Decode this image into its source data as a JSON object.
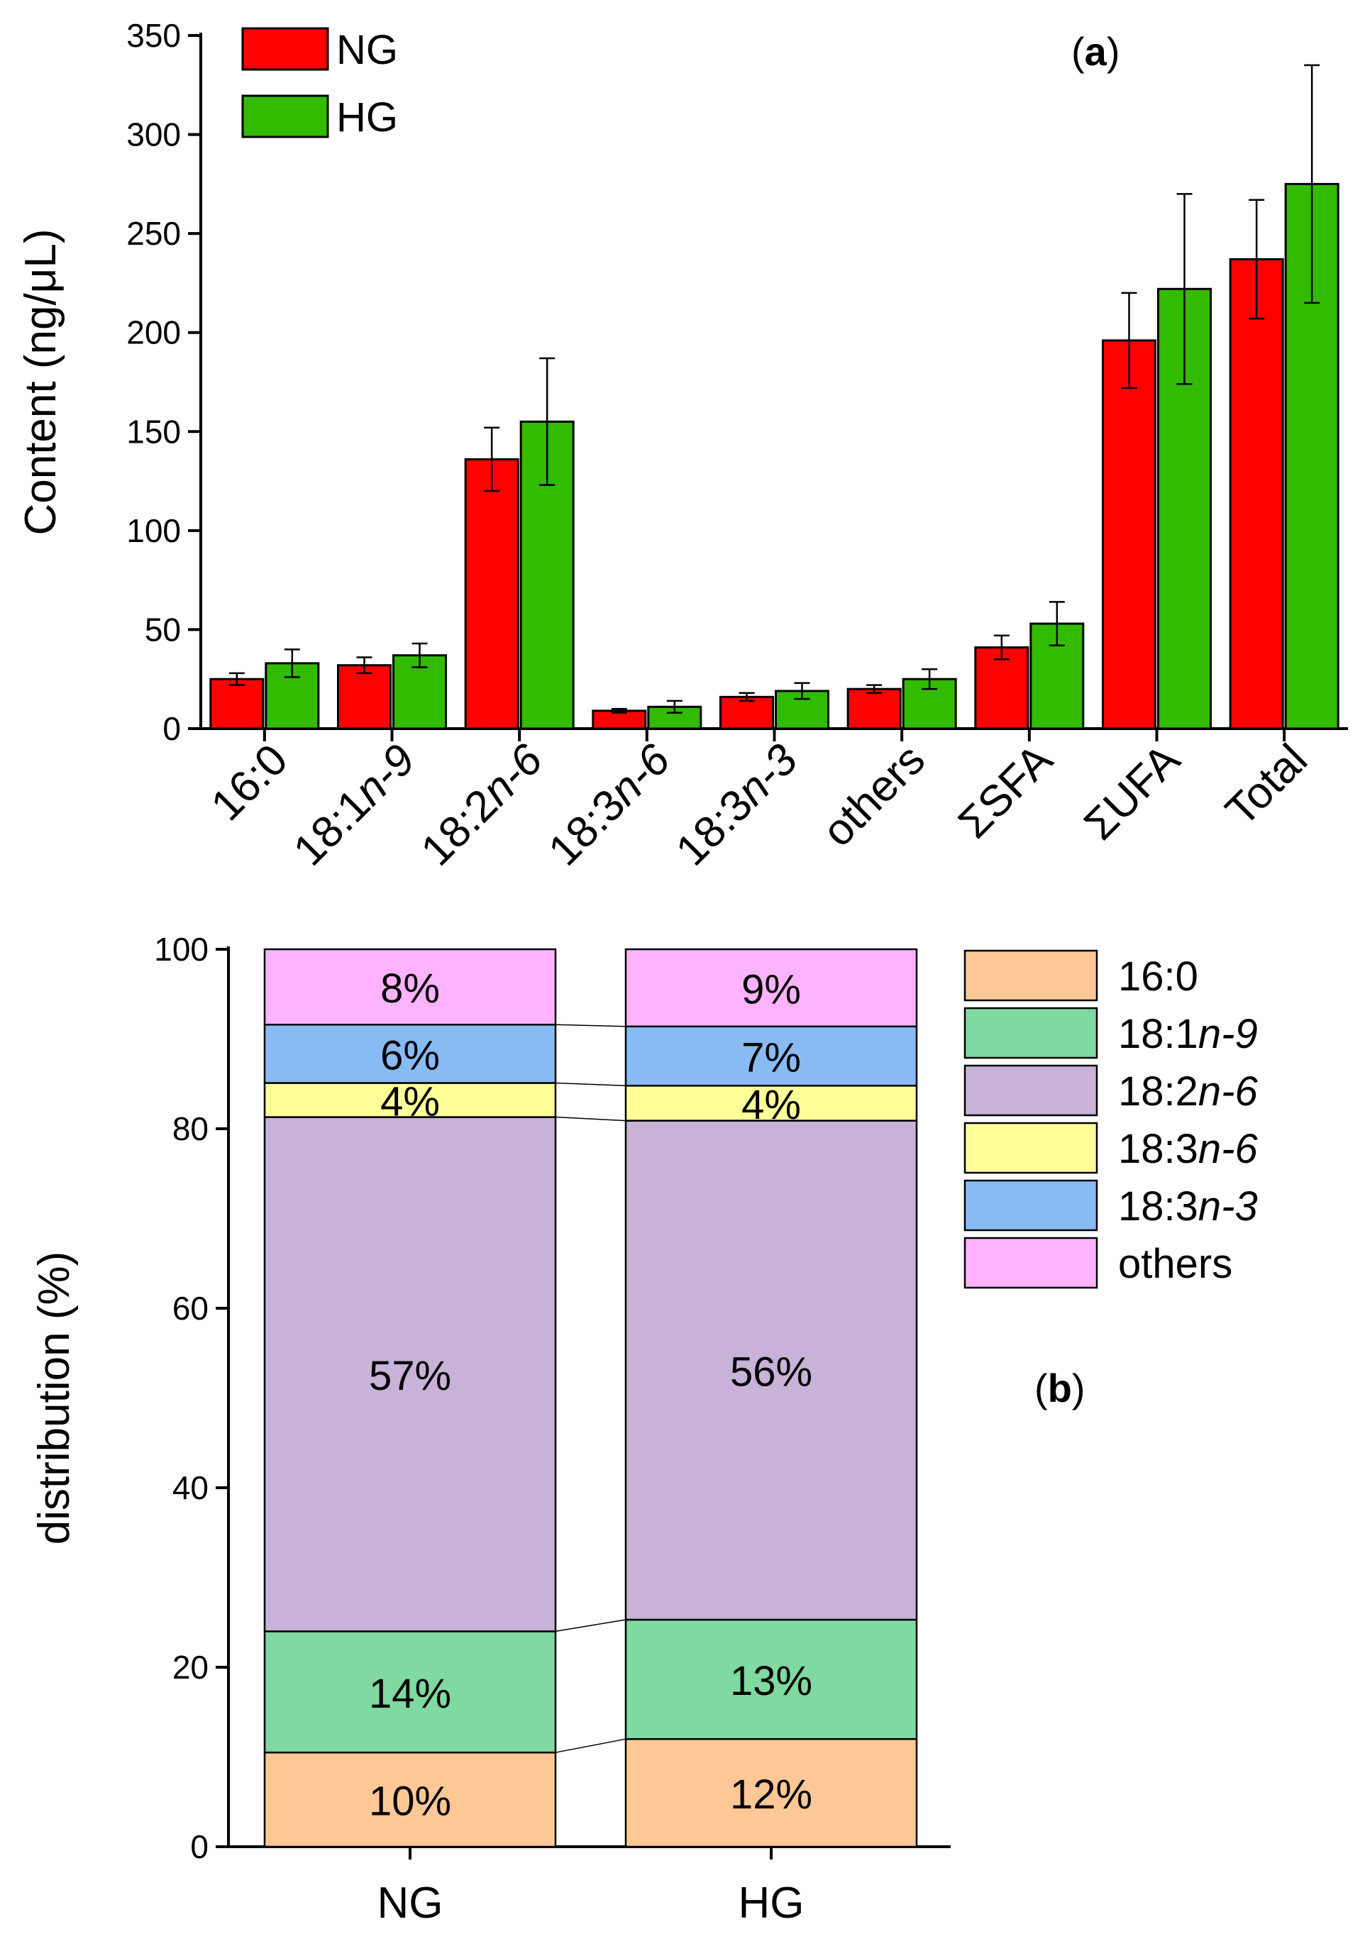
{
  "chart_data": [
    {
      "type": "bar",
      "panel_label": "a",
      "title": "",
      "xlabel": "",
      "ylabel": "Content (ng/μL)",
      "ylim": [
        0,
        350
      ],
      "yticks": [
        0,
        50,
        100,
        150,
        200,
        250,
        300,
        350
      ],
      "grid": false,
      "legend_position": "top-left",
      "categories": [
        {
          "prefix": "16:0",
          "italic": "",
          "suffix": ""
        },
        {
          "prefix": "18:1",
          "italic": "n",
          "suffix": "-9"
        },
        {
          "prefix": "18:2",
          "italic": "n",
          "suffix": "-6"
        },
        {
          "prefix": "18:3",
          "italic": "n",
          "suffix": "-6"
        },
        {
          "prefix": "18:3",
          "italic": "n",
          "suffix": "-3"
        },
        {
          "prefix": "others",
          "italic": "",
          "suffix": ""
        },
        {
          "prefix": "ΣSFA",
          "italic": "",
          "suffix": ""
        },
        {
          "prefix": "ΣUFA",
          "italic": "",
          "suffix": ""
        },
        {
          "prefix": "Total",
          "italic": "",
          "suffix": ""
        }
      ],
      "series": [
        {
          "name": "NG",
          "color": "#ff0000",
          "values": [
            25,
            32,
            136,
            9,
            16,
            20,
            41,
            196,
            237
          ],
          "errors": [
            3,
            4,
            16,
            1,
            2,
            2,
            6,
            24,
            30
          ]
        },
        {
          "name": "HG",
          "color": "#33bb00",
          "values": [
            33,
            37,
            155,
            11,
            19,
            25,
            53,
            222,
            275
          ],
          "errors": [
            7,
            6,
            32,
            3,
            4,
            5,
            11,
            48,
            60
          ]
        }
      ]
    },
    {
      "type": "stacked_bar",
      "panel_label": "b",
      "title": "",
      "xlabel": "",
      "ylabel": "distribution (%)",
      "ylim": [
        0,
        100
      ],
      "yticks": [
        0,
        20,
        40,
        60,
        80,
        100
      ],
      "grid": false,
      "legend_position": "right",
      "categories": [
        "NG",
        "HG"
      ],
      "series": [
        {
          "prefix": "16:0",
          "italic": "",
          "suffix": "",
          "color": "#fdc896",
          "values": [
            10.5,
            12
          ],
          "labels": [
            "10%",
            "12%"
          ]
        },
        {
          "prefix": "18:1",
          "italic": "n",
          "suffix": "-9",
          "color": "#80d9a0",
          "values": [
            13.5,
            13.3
          ],
          "labels": [
            "14%",
            "13%"
          ]
        },
        {
          "prefix": "18:2",
          "italic": "n",
          "suffix": "-6",
          "color": "#c8b2d8",
          "values": [
            57.3,
            55.6
          ],
          "labels": [
            "57%",
            "56%"
          ]
        },
        {
          "prefix": "18:3",
          "italic": "n",
          "suffix": "-6",
          "color": "#ffff99",
          "values": [
            3.8,
            3.9
          ],
          "labels": [
            "4%",
            "4%"
          ]
        },
        {
          "prefix": "18:3",
          "italic": "n",
          "suffix": "-3",
          "color": "#88bbf4",
          "values": [
            6.5,
            6.6
          ],
          "labels": [
            "6%",
            "7%"
          ]
        },
        {
          "prefix": "others",
          "italic": "",
          "suffix": "",
          "color": "#ffb3ff",
          "values": [
            8.4,
            8.6
          ],
          "labels": [
            "8%",
            "9%"
          ]
        }
      ]
    }
  ]
}
